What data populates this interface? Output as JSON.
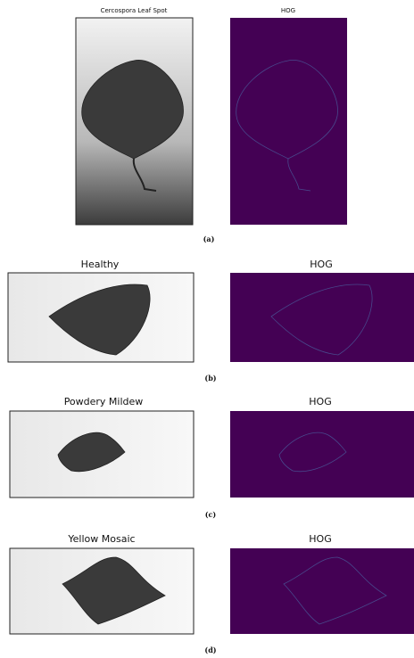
{
  "panels": [
    {
      "image_title": "Cercospora Leaf Spot",
      "hog_title": "HOG",
      "caption": "(a)"
    },
    {
      "image_title": "Healthy",
      "hog_title": "HOG",
      "caption": "(b)"
    },
    {
      "image_title": "Powdery Mildew",
      "hog_title": "HOG",
      "caption": "(c)"
    },
    {
      "image_title": "Yellow Mosaic",
      "hog_title": "HOG",
      "caption": "(d)"
    }
  ]
}
